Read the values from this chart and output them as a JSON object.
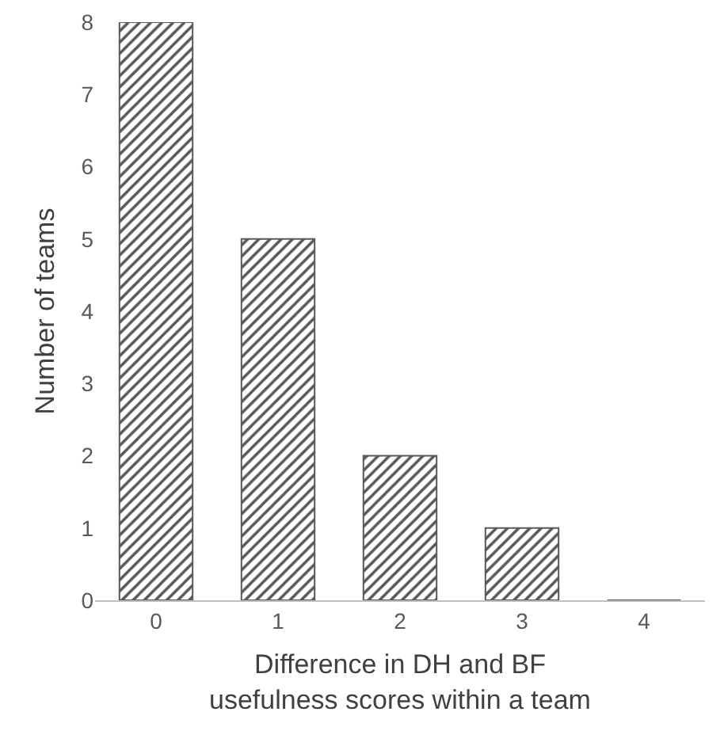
{
  "chart_data": {
    "type": "bar",
    "xlabel": "Difference in DH and BF\nusefulness scores within a team",
    "ylabel": "Number of teams",
    "categories": [
      "0",
      "1",
      "2",
      "3",
      "4"
    ],
    "values": [
      8,
      5,
      2,
      1,
      0
    ],
    "color": "#595959",
    "ylim": [
      0,
      8
    ],
    "yticks": [
      0,
      1,
      2,
      3,
      4,
      5,
      6,
      7,
      8
    ],
    "grid": false
  }
}
